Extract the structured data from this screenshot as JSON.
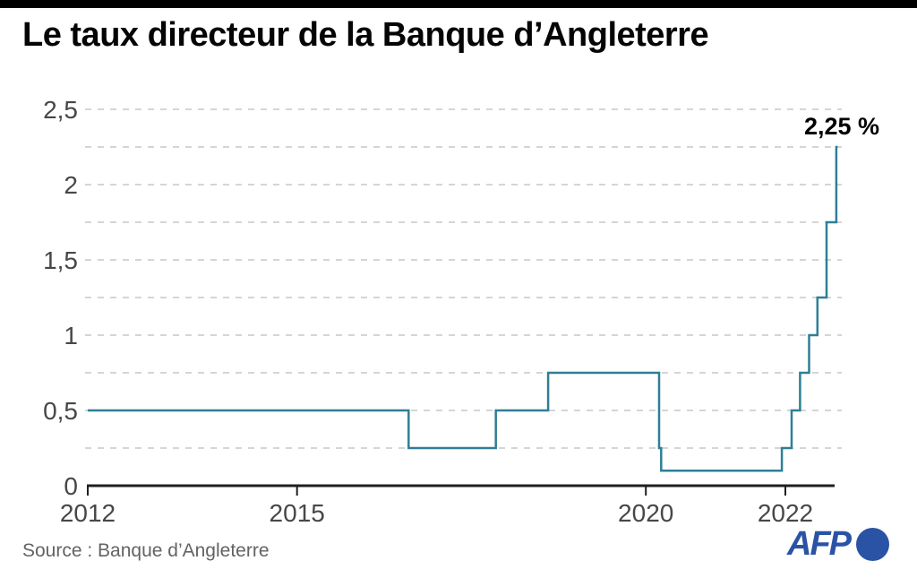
{
  "header": {
    "title": "Le taux directeur de la Banque d’Angleterre"
  },
  "footer": {
    "source": "Source : Banque d’Angleterre",
    "logo_text": "AFP"
  },
  "colors": {
    "line": "#2e7f96",
    "axis": "#1f1f1f",
    "grid": "#d5d5d5",
    "tick_label": "#474747",
    "annotation": "#000000",
    "logo_blue": "#2a53a5"
  },
  "chart_data": {
    "type": "line",
    "step": true,
    "title": "Le taux directeur de la Banque d’Angleterre",
    "unit": "%",
    "grid": "dashed horizontal",
    "grid_interval": 0.25,
    "x_range": [
      2012,
      2022.75
    ],
    "y_range": [
      0,
      2.5
    ],
    "x_ticks": [
      {
        "value": 2012,
        "label": "2012"
      },
      {
        "value": 2015,
        "label": "2015"
      },
      {
        "value": 2020,
        "label": "2020"
      },
      {
        "value": 2022,
        "label": "2022"
      }
    ],
    "y_ticks": [
      {
        "value": 0,
        "label": "0"
      },
      {
        "value": 0.5,
        "label": "0,5"
      },
      {
        "value": 1,
        "label": "1"
      },
      {
        "value": 1.5,
        "label": "1,5"
      },
      {
        "value": 2,
        "label": "2"
      },
      {
        "value": 2.5,
        "label": "2,5"
      }
    ],
    "annotation": {
      "text": "2,25 %",
      "x": 2022.73,
      "y": 2.25
    },
    "series": [
      {
        "name": "Taux directeur (%)",
        "points": [
          {
            "x": 2012.0,
            "y": 0.5
          },
          {
            "x": 2016.6,
            "y": 0.25
          },
          {
            "x": 2017.85,
            "y": 0.5
          },
          {
            "x": 2018.6,
            "y": 0.75
          },
          {
            "x": 2020.19,
            "y": 0.25
          },
          {
            "x": 2020.22,
            "y": 0.1
          },
          {
            "x": 2021.95,
            "y": 0.25
          },
          {
            "x": 2022.09,
            "y": 0.5
          },
          {
            "x": 2022.21,
            "y": 0.75
          },
          {
            "x": 2022.34,
            "y": 1.0
          },
          {
            "x": 2022.46,
            "y": 1.25
          },
          {
            "x": 2022.59,
            "y": 1.75
          },
          {
            "x": 2022.73,
            "y": 2.25
          },
          {
            "x": 2022.75,
            "y": 2.25
          }
        ]
      }
    ]
  }
}
